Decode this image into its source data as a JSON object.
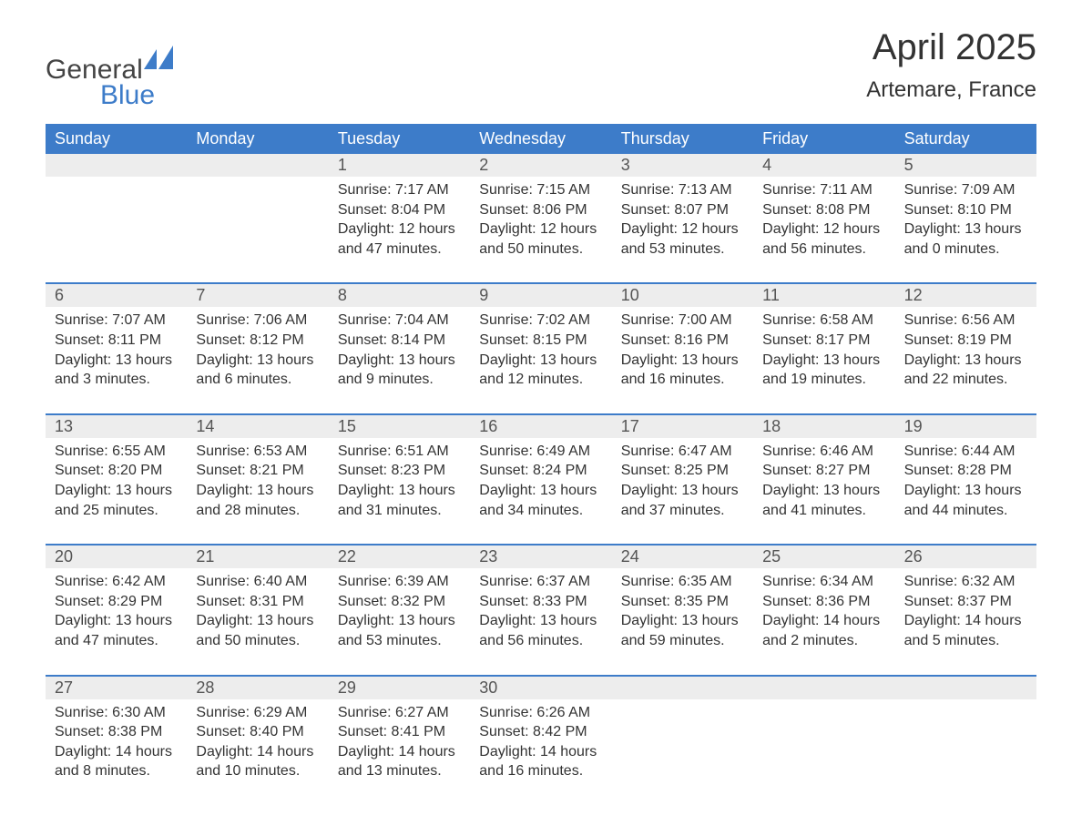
{
  "brand": {
    "text_general": "General",
    "text_blue": "Blue",
    "flag_color": "#3d7cc9"
  },
  "title": {
    "month": "April 2025",
    "location": "Artemare, France"
  },
  "colors": {
    "header_bg": "#3d7cc9",
    "header_text": "#ffffff",
    "daynum_bg": "#ededed",
    "daynum_text": "#555555",
    "body_text": "#333333",
    "week_border": "#3d7cc9",
    "page_bg": "#ffffff"
  },
  "fonts": {
    "month_title_pt": 40,
    "location_pt": 24,
    "dayname_pt": 18,
    "daynum_pt": 18,
    "cell_pt": 16
  },
  "daynames": [
    "Sunday",
    "Monday",
    "Tuesday",
    "Wednesday",
    "Thursday",
    "Friday",
    "Saturday"
  ],
  "weeks": [
    {
      "nums": [
        "",
        "",
        "1",
        "2",
        "3",
        "4",
        "5"
      ],
      "cells": [
        {
          "a": "",
          "b": "",
          "c": "",
          "d": ""
        },
        {
          "a": "",
          "b": "",
          "c": "",
          "d": ""
        },
        {
          "a": "Sunrise: 7:17 AM",
          "b": "Sunset: 8:04 PM",
          "c": "Daylight: 12 hours",
          "d": "and 47 minutes."
        },
        {
          "a": "Sunrise: 7:15 AM",
          "b": "Sunset: 8:06 PM",
          "c": "Daylight: 12 hours",
          "d": "and 50 minutes."
        },
        {
          "a": "Sunrise: 7:13 AM",
          "b": "Sunset: 8:07 PM",
          "c": "Daylight: 12 hours",
          "d": "and 53 minutes."
        },
        {
          "a": "Sunrise: 7:11 AM",
          "b": "Sunset: 8:08 PM",
          "c": "Daylight: 12 hours",
          "d": "and 56 minutes."
        },
        {
          "a": "Sunrise: 7:09 AM",
          "b": "Sunset: 8:10 PM",
          "c": "Daylight: 13 hours",
          "d": "and 0 minutes."
        }
      ]
    },
    {
      "nums": [
        "6",
        "7",
        "8",
        "9",
        "10",
        "11",
        "12"
      ],
      "cells": [
        {
          "a": "Sunrise: 7:07 AM",
          "b": "Sunset: 8:11 PM",
          "c": "Daylight: 13 hours",
          "d": "and 3 minutes."
        },
        {
          "a": "Sunrise: 7:06 AM",
          "b": "Sunset: 8:12 PM",
          "c": "Daylight: 13 hours",
          "d": "and 6 minutes."
        },
        {
          "a": "Sunrise: 7:04 AM",
          "b": "Sunset: 8:14 PM",
          "c": "Daylight: 13 hours",
          "d": "and 9 minutes."
        },
        {
          "a": "Sunrise: 7:02 AM",
          "b": "Sunset: 8:15 PM",
          "c": "Daylight: 13 hours",
          "d": "and 12 minutes."
        },
        {
          "a": "Sunrise: 7:00 AM",
          "b": "Sunset: 8:16 PM",
          "c": "Daylight: 13 hours",
          "d": "and 16 minutes."
        },
        {
          "a": "Sunrise: 6:58 AM",
          "b": "Sunset: 8:17 PM",
          "c": "Daylight: 13 hours",
          "d": "and 19 minutes."
        },
        {
          "a": "Sunrise: 6:56 AM",
          "b": "Sunset: 8:19 PM",
          "c": "Daylight: 13 hours",
          "d": "and 22 minutes."
        }
      ]
    },
    {
      "nums": [
        "13",
        "14",
        "15",
        "16",
        "17",
        "18",
        "19"
      ],
      "cells": [
        {
          "a": "Sunrise: 6:55 AM",
          "b": "Sunset: 8:20 PM",
          "c": "Daylight: 13 hours",
          "d": "and 25 minutes."
        },
        {
          "a": "Sunrise: 6:53 AM",
          "b": "Sunset: 8:21 PM",
          "c": "Daylight: 13 hours",
          "d": "and 28 minutes."
        },
        {
          "a": "Sunrise: 6:51 AM",
          "b": "Sunset: 8:23 PM",
          "c": "Daylight: 13 hours",
          "d": "and 31 minutes."
        },
        {
          "a": "Sunrise: 6:49 AM",
          "b": "Sunset: 8:24 PM",
          "c": "Daylight: 13 hours",
          "d": "and 34 minutes."
        },
        {
          "a": "Sunrise: 6:47 AM",
          "b": "Sunset: 8:25 PM",
          "c": "Daylight: 13 hours",
          "d": "and 37 minutes."
        },
        {
          "a": "Sunrise: 6:46 AM",
          "b": "Sunset: 8:27 PM",
          "c": "Daylight: 13 hours",
          "d": "and 41 minutes."
        },
        {
          "a": "Sunrise: 6:44 AM",
          "b": "Sunset: 8:28 PM",
          "c": "Daylight: 13 hours",
          "d": "and 44 minutes."
        }
      ]
    },
    {
      "nums": [
        "20",
        "21",
        "22",
        "23",
        "24",
        "25",
        "26"
      ],
      "cells": [
        {
          "a": "Sunrise: 6:42 AM",
          "b": "Sunset: 8:29 PM",
          "c": "Daylight: 13 hours",
          "d": "and 47 minutes."
        },
        {
          "a": "Sunrise: 6:40 AM",
          "b": "Sunset: 8:31 PM",
          "c": "Daylight: 13 hours",
          "d": "and 50 minutes."
        },
        {
          "a": "Sunrise: 6:39 AM",
          "b": "Sunset: 8:32 PM",
          "c": "Daylight: 13 hours",
          "d": "and 53 minutes."
        },
        {
          "a": "Sunrise: 6:37 AM",
          "b": "Sunset: 8:33 PM",
          "c": "Daylight: 13 hours",
          "d": "and 56 minutes."
        },
        {
          "a": "Sunrise: 6:35 AM",
          "b": "Sunset: 8:35 PM",
          "c": "Daylight: 13 hours",
          "d": "and 59 minutes."
        },
        {
          "a": "Sunrise: 6:34 AM",
          "b": "Sunset: 8:36 PM",
          "c": "Daylight: 14 hours",
          "d": "and 2 minutes."
        },
        {
          "a": "Sunrise: 6:32 AM",
          "b": "Sunset: 8:37 PM",
          "c": "Daylight: 14 hours",
          "d": "and 5 minutes."
        }
      ]
    },
    {
      "nums": [
        "27",
        "28",
        "29",
        "30",
        "",
        "",
        ""
      ],
      "cells": [
        {
          "a": "Sunrise: 6:30 AM",
          "b": "Sunset: 8:38 PM",
          "c": "Daylight: 14 hours",
          "d": "and 8 minutes."
        },
        {
          "a": "Sunrise: 6:29 AM",
          "b": "Sunset: 8:40 PM",
          "c": "Daylight: 14 hours",
          "d": "and 10 minutes."
        },
        {
          "a": "Sunrise: 6:27 AM",
          "b": "Sunset: 8:41 PM",
          "c": "Daylight: 14 hours",
          "d": "and 13 minutes."
        },
        {
          "a": "Sunrise: 6:26 AM",
          "b": "Sunset: 8:42 PM",
          "c": "Daylight: 14 hours",
          "d": "and 16 minutes."
        },
        {
          "a": "",
          "b": "",
          "c": "",
          "d": ""
        },
        {
          "a": "",
          "b": "",
          "c": "",
          "d": ""
        },
        {
          "a": "",
          "b": "",
          "c": "",
          "d": ""
        }
      ]
    }
  ]
}
